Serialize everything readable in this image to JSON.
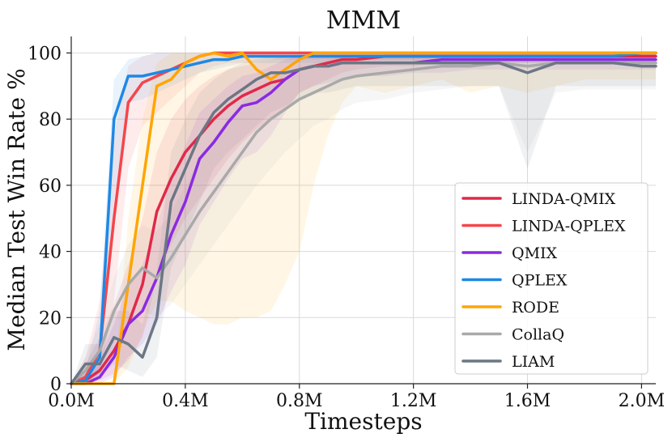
{
  "chart_data": {
    "type": "line",
    "title": "MMM",
    "xlabel": "Timesteps",
    "ylabel": "Median Test Win Rate %",
    "xlim": [
      0,
      2050000
    ],
    "ylim": [
      0,
      105
    ],
    "xticks": [
      0,
      400000,
      800000,
      1200000,
      1600000,
      2000000
    ],
    "xtick_labels": [
      "0.0M",
      "0.4M",
      "0.8M",
      "1.2M",
      "1.6M",
      "2.0M"
    ],
    "yticks": [
      0,
      20,
      40,
      60,
      80,
      100
    ],
    "ytick_labels": [
      "0",
      "20",
      "40",
      "60",
      "80",
      "100"
    ],
    "grid": true,
    "legend_position": "lower-right",
    "x": [
      0,
      50000,
      100000,
      150000,
      200000,
      250000,
      300000,
      350000,
      400000,
      450000,
      500000,
      550000,
      600000,
      650000,
      700000,
      750000,
      800000,
      850000,
      900000,
      950000,
      1000000,
      1100000,
      1200000,
      1300000,
      1400000,
      1500000,
      1600000,
      1700000,
      1800000,
      1900000,
      2000000,
      2050000
    ],
    "series": [
      {
        "name": "LINDA-QMIX",
        "color": "#e0294a",
        "values": [
          0,
          1,
          4,
          10,
          18,
          30,
          52,
          62,
          70,
          75,
          80,
          84,
          87,
          89,
          91,
          92,
          95,
          96,
          97,
          98,
          98,
          99,
          99,
          99,
          99,
          99,
          99,
          99,
          99,
          99,
          99,
          99
        ],
        "lower": [
          0,
          0,
          1,
          3,
          7,
          14,
          32,
          42,
          50,
          56,
          62,
          68,
          73,
          77,
          80,
          83,
          88,
          90,
          92,
          94,
          95,
          96,
          96,
          97,
          97,
          97,
          97,
          97,
          97,
          97,
          97,
          97
        ],
        "upper": [
          0,
          6,
          14,
          24,
          36,
          50,
          70,
          80,
          86,
          90,
          93,
          95,
          96,
          97,
          98,
          99,
          99,
          100,
          100,
          100,
          100,
          100,
          100,
          100,
          100,
          100,
          100,
          100,
          100,
          100,
          100,
          100
        ]
      },
      {
        "name": "LINDA-QPLEX",
        "color": "#f5454c",
        "values": [
          0,
          2,
          10,
          50,
          85,
          91,
          93,
          95,
          97,
          99,
          100,
          100,
          100,
          100,
          100,
          100,
          100,
          100,
          100,
          100,
          100,
          100,
          100,
          100,
          100,
          100,
          100,
          100,
          100,
          100,
          100,
          100
        ],
        "lower": [
          0,
          0,
          3,
          25,
          65,
          78,
          82,
          86,
          90,
          94,
          96,
          97,
          97,
          97,
          98,
          98,
          98,
          98,
          98,
          98,
          98,
          98,
          98,
          98,
          98,
          98,
          98,
          98,
          98,
          98,
          98,
          98
        ],
        "upper": [
          0,
          8,
          25,
          75,
          96,
          99,
          100,
          100,
          100,
          100,
          100,
          100,
          100,
          100,
          100,
          100,
          100,
          100,
          100,
          100,
          100,
          100,
          100,
          100,
          100,
          100,
          100,
          100,
          100,
          100,
          100,
          100
        ]
      },
      {
        "name": "QMIX",
        "color": "#8a2be2",
        "values": [
          0,
          0,
          2,
          8,
          18,
          22,
          32,
          45,
          55,
          68,
          73,
          79,
          84,
          85,
          88,
          92,
          95,
          96,
          96,
          97,
          97,
          97,
          97,
          98,
          98,
          98,
          98,
          98,
          98,
          98,
          98,
          98
        ],
        "lower": [
          0,
          0,
          0,
          2,
          8,
          12,
          18,
          28,
          36,
          48,
          55,
          62,
          68,
          70,
          75,
          82,
          88,
          90,
          91,
          92,
          93,
          93,
          94,
          94,
          95,
          95,
          95,
          95,
          95,
          95,
          95,
          95
        ],
        "upper": [
          0,
          3,
          8,
          18,
          30,
          36,
          48,
          62,
          72,
          82,
          86,
          90,
          93,
          94,
          96,
          98,
          99,
          99,
          100,
          100,
          100,
          100,
          100,
          100,
          100,
          100,
          100,
          100,
          100,
          100,
          100,
          100
        ]
      },
      {
        "name": "QPLEX",
        "color": "#1e88e5",
        "values": [
          0,
          1,
          8,
          80,
          93,
          93,
          94,
          95,
          96,
          97,
          98,
          98,
          99,
          99,
          99,
          99,
          99,
          99,
          99,
          99,
          99,
          99,
          99,
          99,
          99,
          99,
          99,
          99,
          99,
          99,
          100,
          100
        ],
        "lower": [
          0,
          0,
          3,
          55,
          85,
          86,
          88,
          90,
          92,
          94,
          95,
          96,
          97,
          97,
          97,
          97,
          97,
          97,
          97,
          97,
          97,
          97,
          97,
          97,
          97,
          97,
          97,
          97,
          97,
          97,
          98,
          98
        ],
        "upper": [
          0,
          4,
          22,
          92,
          98,
          99,
          100,
          100,
          100,
          100,
          100,
          100,
          100,
          100,
          100,
          100,
          100,
          100,
          100,
          100,
          100,
          100,
          100,
          100,
          100,
          100,
          100,
          100,
          100,
          100,
          100,
          100
        ]
      },
      {
        "name": "RODE",
        "color": "#ffa500",
        "values": [
          0,
          0,
          0,
          0,
          30,
          60,
          90,
          92,
          97,
          99,
          100,
          99,
          100,
          95,
          92,
          95,
          98,
          100,
          100,
          100,
          100,
          100,
          100,
          100,
          100,
          100,
          100,
          100,
          100,
          100,
          100,
          100
        ],
        "lower": [
          0,
          0,
          0,
          0,
          5,
          15,
          25,
          25,
          22,
          20,
          18,
          18,
          20,
          20,
          22,
          30,
          40,
          60,
          75,
          85,
          90,
          88,
          90,
          92,
          88,
          90,
          88,
          90,
          92,
          92,
          92,
          92
        ],
        "upper": [
          0,
          0,
          0,
          0,
          50,
          80,
          97,
          100,
          100,
          100,
          100,
          100,
          100,
          100,
          100,
          100,
          100,
          100,
          100,
          100,
          100,
          100,
          100,
          100,
          100,
          100,
          100,
          100,
          100,
          100,
          100,
          100
        ]
      },
      {
        "name": "CollaQ",
        "color": "#a9a9a9",
        "values": [
          0,
          4,
          10,
          22,
          30,
          35,
          32,
          38,
          45,
          52,
          58,
          64,
          70,
          76,
          80,
          83,
          86,
          88,
          90,
          92,
          93,
          94,
          95,
          96,
          96,
          97,
          96,
          97,
          97,
          97,
          97,
          97
        ],
        "lower": [
          0,
          0,
          3,
          12,
          18,
          22,
          20,
          24,
          30,
          36,
          42,
          48,
          54,
          60,
          65,
          70,
          74,
          78,
          80,
          83,
          85,
          86,
          88,
          89,
          90,
          90,
          70,
          88,
          89,
          89,
          89,
          89
        ],
        "upper": [
          0,
          8,
          18,
          32,
          42,
          48,
          46,
          52,
          60,
          68,
          74,
          80,
          85,
          89,
          92,
          94,
          96,
          97,
          98,
          99,
          99,
          99,
          100,
          100,
          100,
          100,
          100,
          100,
          100,
          100,
          100,
          100
        ]
      },
      {
        "name": "LIAM",
        "color": "#6b7785",
        "values": [
          0,
          6,
          6,
          14,
          12,
          8,
          20,
          55,
          65,
          75,
          82,
          86,
          89,
          92,
          94,
          94,
          95,
          96,
          96,
          97,
          97,
          97,
          97,
          97,
          97,
          97,
          94,
          97,
          97,
          97,
          96,
          96
        ],
        "lower": [
          0,
          2,
          2,
          6,
          4,
          2,
          8,
          35,
          45,
          55,
          65,
          70,
          74,
          78,
          82,
          84,
          86,
          88,
          88,
          89,
          90,
          90,
          90,
          90,
          90,
          90,
          65,
          90,
          90,
          90,
          90,
          90
        ],
        "upper": [
          0,
          12,
          12,
          22,
          22,
          18,
          34,
          70,
          80,
          88,
          92,
          95,
          97,
          98,
          99,
          99,
          99,
          99,
          99,
          99,
          99,
          99,
          99,
          99,
          99,
          99,
          99,
          99,
          99,
          99,
          99,
          99
        ]
      }
    ]
  }
}
